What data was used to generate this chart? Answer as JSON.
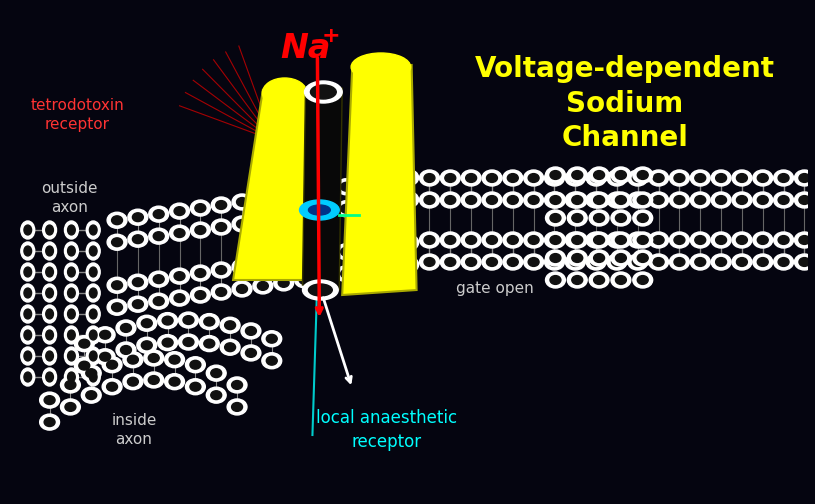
{
  "bg_color": "#050510",
  "title_text": "Voltage-dependent\nSodium\nChannel",
  "title_color": "#FFff00",
  "title_fontsize": 20,
  "na_color": "#FF0000",
  "tetrodotoxin_text": "tetrodotoxin\nreceptor",
  "tetrodotoxin_color": "#FF3333",
  "outside_axon_text": "outside\naxon",
  "outside_axon_color": "#cccccc",
  "inside_axon_text": "inside\naxon",
  "inside_axon_color": "#cccccc",
  "gate_open_text": "gate open",
  "gate_open_color": "#cccccc",
  "local_anaesthetic_text": "local anaesthetic\nreceptor",
  "local_anaesthetic_color": "#00ffff",
  "head_edge": "#ffffff",
  "head_fill": "#111111",
  "protein_color": "#FFff00",
  "red": "#FF0000",
  "white": "#ffffff",
  "cyan": "#00ccff"
}
